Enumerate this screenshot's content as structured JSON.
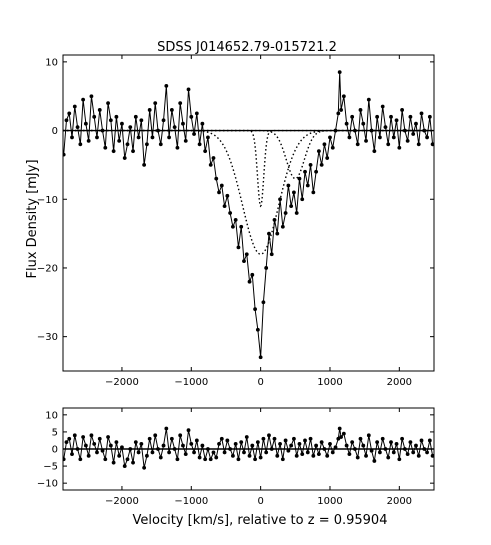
{
  "chart_data": [
    {
      "type": "line",
      "title": "SDSS J014652.79-015721.2",
      "xlabel": "",
      "ylabel": "Flux Density [mJy]",
      "xlim": [
        -2850,
        2500
      ],
      "ylim": [
        -35,
        11
      ],
      "x_ticks": [
        -2000,
        -1000,
        0,
        1000,
        2000
      ],
      "y_ticks": [
        10,
        0,
        -10,
        -20,
        -30
      ],
      "x_tick_labels": [
        "−2000",
        "−1000",
        "0",
        "1000",
        "2000"
      ],
      "y_tick_labels": [
        "10",
        "0",
        "−10",
        "−20",
        "−30"
      ],
      "grid": false,
      "legend": "none",
      "series_spectrum": [
        [
          -2840,
          -3.5
        ],
        [
          -2800,
          1.5
        ],
        [
          -2760,
          2.5
        ],
        [
          -2720,
          -1
        ],
        [
          -2680,
          3.5
        ],
        [
          -2640,
          0.5
        ],
        [
          -2600,
          -2
        ],
        [
          -2560,
          4.5
        ],
        [
          -2520,
          1
        ],
        [
          -2480,
          -1.5
        ],
        [
          -2440,
          5
        ],
        [
          -2400,
          2
        ],
        [
          -2360,
          -1
        ],
        [
          -2320,
          3
        ],
        [
          -2280,
          0
        ],
        [
          -2240,
          -2.5
        ],
        [
          -2200,
          4
        ],
        [
          -2160,
          1.5
        ],
        [
          -2120,
          -3
        ],
        [
          -2080,
          2
        ],
        [
          -2040,
          -1.5
        ],
        [
          -2000,
          1
        ],
        [
          -1960,
          -4
        ],
        [
          -1920,
          -2
        ],
        [
          -1880,
          0.5
        ],
        [
          -1840,
          -3
        ],
        [
          -1800,
          2
        ],
        [
          -1760,
          -1
        ],
        [
          -1720,
          1.5
        ],
        [
          -1680,
          -5
        ],
        [
          -1640,
          -2
        ],
        [
          -1600,
          3
        ],
        [
          -1560,
          -1
        ],
        [
          -1520,
          4
        ],
        [
          -1480,
          0
        ],
        [
          -1440,
          -2
        ],
        [
          -1400,
          1.5
        ],
        [
          -1360,
          6.5
        ],
        [
          -1320,
          -1
        ],
        [
          -1280,
          3
        ],
        [
          -1240,
          0.5
        ],
        [
          -1200,
          -2.5
        ],
        [
          -1160,
          4
        ],
        [
          -1120,
          1
        ],
        [
          -1080,
          -1.5
        ],
        [
          -1040,
          6
        ],
        [
          -1000,
          2
        ],
        [
          -960,
          -0.5
        ],
        [
          -920,
          2.5
        ],
        [
          -880,
          -2
        ],
        [
          -840,
          1
        ],
        [
          -800,
          -3
        ],
        [
          -760,
          -1
        ],
        [
          -720,
          -5
        ],
        [
          -680,
          -4
        ],
        [
          -640,
          -7
        ],
        [
          -600,
          -9
        ],
        [
          -560,
          -8
        ],
        [
          -520,
          -11
        ],
        [
          -480,
          -9.5
        ],
        [
          -440,
          -12
        ],
        [
          -400,
          -14
        ],
        [
          -360,
          -13
        ],
        [
          -320,
          -17
        ],
        [
          -280,
          -14
        ],
        [
          -240,
          -19
        ],
        [
          -200,
          -18
        ],
        [
          -160,
          -22
        ],
        [
          -120,
          -21
        ],
        [
          -80,
          -26
        ],
        [
          -40,
          -29
        ],
        [
          0,
          -33
        ],
        [
          40,
          -25
        ],
        [
          80,
          -20
        ],
        [
          120,
          -15
        ],
        [
          160,
          -18
        ],
        [
          200,
          -13
        ],
        [
          240,
          -15
        ],
        [
          280,
          -10
        ],
        [
          320,
          -14
        ],
        [
          360,
          -12
        ],
        [
          400,
          -8
        ],
        [
          440,
          -11
        ],
        [
          480,
          -9
        ],
        [
          520,
          -12
        ],
        [
          560,
          -7
        ],
        [
          600,
          -10
        ],
        [
          640,
          -6
        ],
        [
          680,
          -8
        ],
        [
          720,
          -5
        ],
        [
          760,
          -9
        ],
        [
          800,
          -6
        ],
        [
          840,
          -3
        ],
        [
          880,
          -5
        ],
        [
          920,
          -2
        ],
        [
          960,
          -4
        ],
        [
          1000,
          -1
        ],
        [
          1040,
          -2.5
        ],
        [
          1080,
          0
        ],
        [
          1120,
          2.5
        ],
        [
          1140,
          8.5
        ],
        [
          1160,
          3
        ],
        [
          1200,
          5
        ],
        [
          1240,
          1
        ],
        [
          1280,
          -1
        ],
        [
          1320,
          2
        ],
        [
          1360,
          0
        ],
        [
          1400,
          -2
        ],
        [
          1440,
          3
        ],
        [
          1480,
          1
        ],
        [
          1520,
          -1.5
        ],
        [
          1560,
          4.5
        ],
        [
          1600,
          0
        ],
        [
          1640,
          -3
        ],
        [
          1680,
          2
        ],
        [
          1720,
          -1
        ],
        [
          1760,
          3.5
        ],
        [
          1800,
          0.5
        ],
        [
          1840,
          -2
        ],
        [
          1880,
          2
        ],
        [
          1920,
          -1
        ],
        [
          1960,
          1.5
        ],
        [
          2000,
          -2.5
        ],
        [
          2040,
          3
        ],
        [
          2080,
          0
        ],
        [
          2120,
          -1.5
        ],
        [
          2160,
          2
        ],
        [
          2200,
          -0.5
        ],
        [
          2240,
          1
        ],
        [
          2280,
          -2
        ],
        [
          2320,
          2.5
        ],
        [
          2360,
          0
        ],
        [
          2400,
          -1
        ],
        [
          2440,
          2
        ],
        [
          2480,
          -2
        ]
      ],
      "component_narrow": {
        "center": 0,
        "depth": -11,
        "sigma": 45
      },
      "component_wide": {
        "center": 0,
        "depth": -18,
        "sigma": 260
      },
      "component_offset": {
        "center": 500,
        "depth": -7,
        "sigma": 130
      },
      "continuum": 0
    },
    {
      "type": "line",
      "title": "",
      "xlabel": "Velocity [km/s], relative to z = 0.95904",
      "ylabel": "",
      "xlim": [
        -2850,
        2500
      ],
      "ylim": [
        -12,
        12
      ],
      "x_ticks": [
        -2000,
        -1000,
        0,
        1000,
        2000
      ],
      "y_ticks": [
        10,
        5,
        0,
        -5,
        -10
      ],
      "x_tick_labels": [
        "−2000",
        "−1000",
        "0",
        "1000",
        "2000"
      ],
      "y_tick_labels": [
        "10",
        "5",
        "0",
        "−5",
        "−10"
      ],
      "grid": false,
      "legend": "none",
      "series_residual": [
        [
          -2840,
          -3
        ],
        [
          -2800,
          2
        ],
        [
          -2760,
          3
        ],
        [
          -2720,
          -1.5
        ],
        [
          -2680,
          4
        ],
        [
          -2640,
          0
        ],
        [
          -2600,
          -3
        ],
        [
          -2560,
          3.5
        ],
        [
          -2520,
          1
        ],
        [
          -2480,
          -2
        ],
        [
          -2440,
          4
        ],
        [
          -2400,
          1.5
        ],
        [
          -2360,
          -1
        ],
        [
          -2320,
          3
        ],
        [
          -2280,
          -0.5
        ],
        [
          -2240,
          -3
        ],
        [
          -2200,
          3.5
        ],
        [
          -2160,
          1
        ],
        [
          -2120,
          -4
        ],
        [
          -2080,
          2
        ],
        [
          -2040,
          -2
        ],
        [
          -2000,
          0.5
        ],
        [
          -1960,
          -5
        ],
        [
          -1920,
          -3
        ],
        [
          -1880,
          0
        ],
        [
          -1840,
          -4
        ],
        [
          -1800,
          2
        ],
        [
          -1760,
          -1
        ],
        [
          -1720,
          1.5
        ],
        [
          -1680,
          -5.5
        ],
        [
          -1640,
          -2
        ],
        [
          -1600,
          3
        ],
        [
          -1560,
          -1
        ],
        [
          -1520,
          4
        ],
        [
          -1480,
          0
        ],
        [
          -1440,
          -2.5
        ],
        [
          -1400,
          1
        ],
        [
          -1360,
          6
        ],
        [
          -1320,
          -1
        ],
        [
          -1280,
          3
        ],
        [
          -1240,
          0
        ],
        [
          -1200,
          -3
        ],
        [
          -1160,
          4
        ],
        [
          -1120,
          1
        ],
        [
          -1080,
          -1.5
        ],
        [
          -1040,
          5.5
        ],
        [
          -1000,
          1.5
        ],
        [
          -960,
          -1
        ],
        [
          -920,
          2.5
        ],
        [
          -880,
          -2.5
        ],
        [
          -840,
          1
        ],
        [
          -800,
          -3
        ],
        [
          -760,
          0
        ],
        [
          -720,
          -3
        ],
        [
          -680,
          -1
        ],
        [
          -640,
          -2.5
        ],
        [
          -600,
          1.5
        ],
        [
          -560,
          3
        ],
        [
          -520,
          -1
        ],
        [
          -480,
          2.5
        ],
        [
          -440,
          0
        ],
        [
          -400,
          -2
        ],
        [
          -360,
          1.5
        ],
        [
          -320,
          -3
        ],
        [
          -280,
          2
        ],
        [
          -240,
          -1
        ],
        [
          -200,
          3.5
        ],
        [
          -160,
          -2
        ],
        [
          -120,
          1
        ],
        [
          -80,
          -3
        ],
        [
          -40,
          2
        ],
        [
          0,
          -2.5
        ],
        [
          40,
          3
        ],
        [
          80,
          -1
        ],
        [
          120,
          4
        ],
        [
          160,
          0
        ],
        [
          200,
          3
        ],
        [
          240,
          -2
        ],
        [
          280,
          1.5
        ],
        [
          320,
          -3
        ],
        [
          360,
          2.5
        ],
        [
          400,
          -0.5
        ],
        [
          440,
          1
        ],
        [
          480,
          3
        ],
        [
          520,
          -2
        ],
        [
          560,
          1.5
        ],
        [
          600,
          -1.5
        ],
        [
          640,
          2.5
        ],
        [
          680,
          -1
        ],
        [
          720,
          3
        ],
        [
          760,
          -2
        ],
        [
          800,
          1
        ],
        [
          840,
          -1.5
        ],
        [
          880,
          2
        ],
        [
          920,
          0
        ],
        [
          960,
          -2
        ],
        [
          1000,
          1.5
        ],
        [
          1040,
          -1
        ],
        [
          1080,
          0.5
        ],
        [
          1120,
          3
        ],
        [
          1140,
          6
        ],
        [
          1160,
          3.5
        ],
        [
          1200,
          4.5
        ],
        [
          1240,
          1
        ],
        [
          1280,
          -1.5
        ],
        [
          1320,
          2
        ],
        [
          1360,
          0
        ],
        [
          1400,
          -2.5
        ],
        [
          1440,
          3
        ],
        [
          1480,
          1
        ],
        [
          1520,
          -2
        ],
        [
          1560,
          4
        ],
        [
          1600,
          -0.5
        ],
        [
          1640,
          -3.5
        ],
        [
          1680,
          2
        ],
        [
          1720,
          -1
        ],
        [
          1760,
          3
        ],
        [
          1800,
          0
        ],
        [
          1840,
          -2.5
        ],
        [
          1880,
          2
        ],
        [
          1920,
          -1
        ],
        [
          1960,
          1.5
        ],
        [
          2000,
          -3
        ],
        [
          2040,
          3
        ],
        [
          2080,
          0
        ],
        [
          2120,
          -1.5
        ],
        [
          2160,
          2
        ],
        [
          2200,
          -1
        ],
        [
          2240,
          1
        ],
        [
          2280,
          -2
        ],
        [
          2320,
          2.5
        ],
        [
          2360,
          0
        ],
        [
          2400,
          -1
        ],
        [
          2440,
          2.5
        ],
        [
          2480,
          -2
        ]
      ]
    }
  ]
}
